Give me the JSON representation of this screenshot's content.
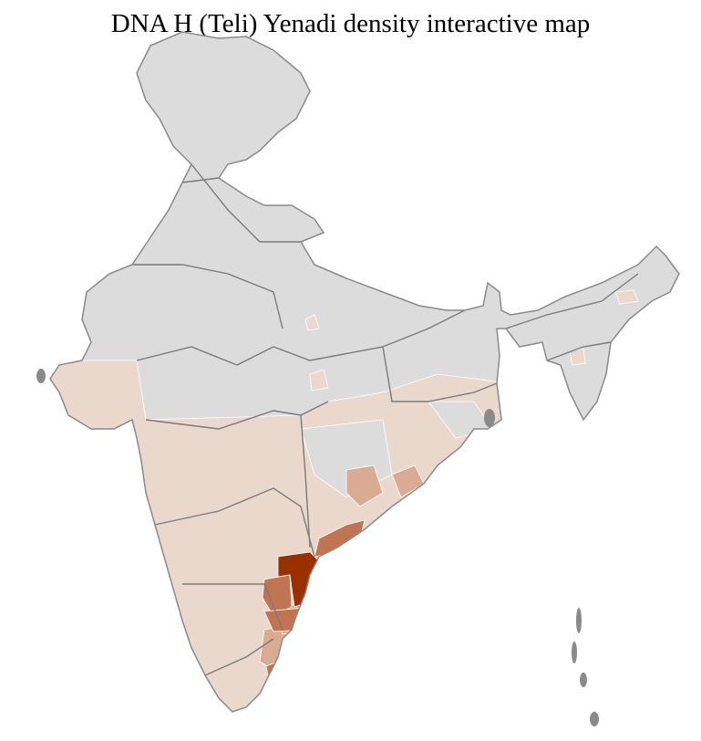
{
  "title": "DNA H (Teli) Yenadi density interactive map",
  "colors": {
    "no_data": "#dcdcdc",
    "level_1": "#ebd8cd",
    "level_2": "#d9ab92",
    "level_3": "#c07550",
    "level_4": "#9a3000",
    "state_border": "#7a7a7a",
    "district_border": "#ffffff"
  }
}
